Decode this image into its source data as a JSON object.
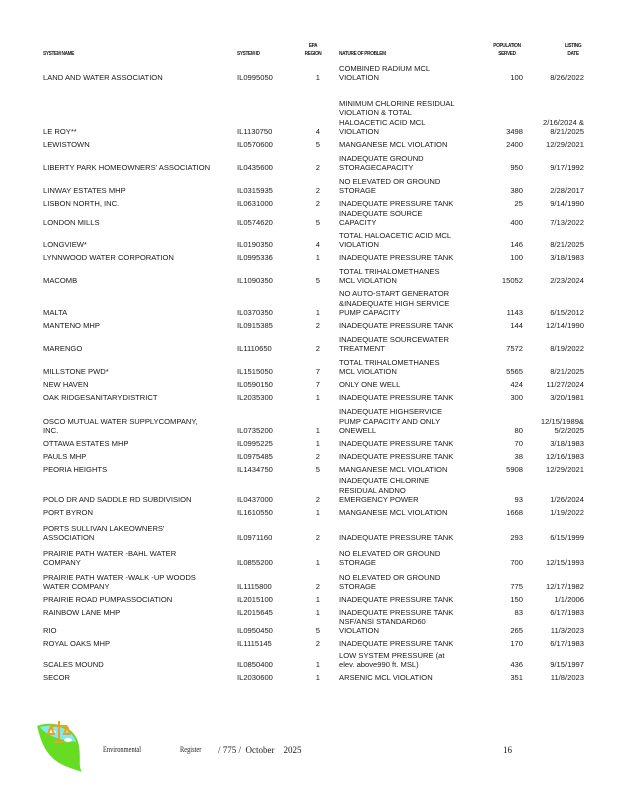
{
  "header": {
    "system_name": "SYSTEM      NAME",
    "system_id": "SYSTEM      ID",
    "epa_region": "EPA\nREGION",
    "nature": "NATURE      OF  PROBLEM",
    "population": "POPULATION\nSERVED",
    "listing_date": "LISTING\nDATE"
  },
  "rows": [
    {
      "name": "LAND AND  WATER  ASSOCIATION",
      "id": "IL0995050",
      "region": "1",
      "problem": "COMBINED  RADIUM MCL\nVIOLATION",
      "population": "100",
      "date": "8/26/2022"
    },
    {
      "name": "LE ROY**",
      "id": "IL1130750",
      "region": "4",
      "problem": "MINIMUM CHLORINE RESIDUAL\nVIOLATION  & TOTAL\nHALOACETIC  ACID MCL\nVIOLATION",
      "population": "3498",
      "date": "2/16/2024  &\n8/21/2025"
    },
    {
      "name": "LEWISTOWN",
      "id": "IL0570600",
      "region": "5",
      "problem": "MANGANESE  MCL VIOLATION",
      "population": "2400",
      "date": "12/29/2021"
    },
    {
      "name": "LIBERTY  PARK HOMEOWNERS'  ASSOCIATION",
      "id": "IL0435600",
      "region": "2",
      "problem": "INADEQUATE  GROUND\nSTORAGECAPACITY",
      "population": "950",
      "date": "9/17/1992"
    },
    {
      "name": "LINWAY ESTATES  MHP",
      "id": "IL0315935",
      "region": "2",
      "problem": "NO ELEVATED  OR GROUND\nSTORAGE",
      "population": "380",
      "date": "2/28/2017"
    },
    {
      "name": "LISBON  NORTH, INC.",
      "id": "IL0631000",
      "region": "2",
      "problem": "INADEQUATE  PRESSURE  TANK",
      "population": "25",
      "date": "9/14/1990"
    },
    {
      "name": "LONDON MILLS",
      "id": "IL0574620",
      "region": "5",
      "problem": "INADEQUATE  SOURCE\nCAPACITY",
      "population": "400",
      "date": "7/13/2022"
    },
    {
      "name": "LONGVIEW*",
      "id": "IL0190350",
      "region": "4",
      "problem": "TOTAL HALOACETIC  ACID MCL\nVIOLATION",
      "population": "146",
      "date": "8/21/2025"
    },
    {
      "name": "LYNNWOOD WATER  CORPORATION",
      "id": "IL0995336",
      "region": "1",
      "problem": "INADEQUATE  PRESSURE  TANK",
      "population": "100",
      "date": "3/18/1983"
    },
    {
      "name": "MACOMB",
      "id": "IL1090350",
      "region": "5",
      "problem": "TOTAL TRIHALOMETHANES\nMCL VIOLATION",
      "population": "15052",
      "date": "2/23/2024"
    },
    {
      "name": "MALTA",
      "id": "IL0370350",
      "region": "1",
      "problem": "NO AUTO-START GENERATOR\n&INADEQUATE   HIGH SERVICE\nPUMP CAPACITY",
      "population": "1143",
      "date": "6/15/2012"
    },
    {
      "name": "MANTENO MHP",
      "id": "IL0915385",
      "region": "2",
      "problem": "INADEQUATE  PRESSURE  TANK",
      "population": "144",
      "date": "12/14/1990"
    },
    {
      "name": "MARENGO",
      "id": "IL1110650",
      "region": "2",
      "problem": "INADEQUATE  SOURCEWATER\nTREATMENT",
      "population": "7572",
      "date": "8/19/2022"
    },
    {
      "name": "MILLSTONE  PWD*",
      "id": "IL1515050",
      "region": "7",
      "problem": "TOTAL TRIHALOMETHANES\nMCL VIOLATION",
      "population": "5565",
      "date": "8/21/2025"
    },
    {
      "name": "NEW HAVEN",
      "id": "IL0590150",
      "region": "7",
      "problem": "ONLY ONE WELL",
      "population": "424",
      "date": "11/27/2024"
    },
    {
      "name": "OAK RIDGESANITARYDISTRICT",
      "id": "IL2035300",
      "region": "1",
      "problem": "INADEQUATE  PRESSURE  TANK",
      "population": "300",
      "date": "3/20/1981"
    },
    {
      "name": "OSCO MUTUAL WATER  SUPPLYCOMPANY,\nINC.",
      "id": "IL0735200",
      "region": "1",
      "problem": "INADEQUATE  HIGHSERVICE\nPUMP CAPACITY  AND ONLY\nONEWELL",
      "population": "80",
      "date": "12/15/1989&\n5/2/2025"
    },
    {
      "name": "OTTAWA ESTATES  MHP",
      "id": "IL0995225",
      "region": "1",
      "problem": "INADEQUATE  PRESSURE  TANK",
      "population": "70",
      "date": "3/18/1983"
    },
    {
      "name": "PAULS MHP",
      "id": "IL0975485",
      "region": "2",
      "problem": "INADEQUATE  PRESSURE  TANK",
      "population": "38",
      "date": "12/16/1983"
    },
    {
      "name": "PEORIA  HEIGHTS",
      "id": "IL1434750",
      "region": "5",
      "problem": "MANGANESE  MCL VIOLATION",
      "population": "5908",
      "date": "12/29/2021"
    },
    {
      "name": "POLO DR AND SADDLE   RD SUBDIVISION",
      "id": "IL0437000",
      "region": "2",
      "problem": "INADEQUATE  CHLORINE\nRESIDUAL  ANDNO\nEMERGENCY  POWER",
      "population": "93",
      "date": "1/26/2024"
    },
    {
      "name": "PORT BYRON",
      "id": "IL1610550",
      "region": "1",
      "problem": "MANGANESE  MCL VIOLATION",
      "population": "1668",
      "date": "1/19/2022"
    },
    {
      "name": "PORTS SULLIVAN  LAKEOWNERS'\nASSOCIATION",
      "id": "IL0971160",
      "region": "2",
      "problem": "INADEQUATE  PRESSURE  TANK",
      "population": "293",
      "date": "6/15/1999"
    },
    {
      "name": "PRAIRIE  PATH WATER  -BAHL  WATER\nCOMPANY",
      "id": "IL0855200",
      "region": "1",
      "problem": "NO ELEVATED  OR GROUND\nSTORAGE",
      "population": "700",
      "date": "12/15/1993"
    },
    {
      "name": "PRAIRIE  PATH WATER  -WALK -UP WOODS\nWATER COMPANY",
      "id": "IL1115800",
      "region": "2",
      "problem": "NO ELEVATED  OR GROUND\nSTORAGE",
      "population": "775",
      "date": "12/17/1982"
    },
    {
      "name": "PRAIRIE  ROAD PUMPASSOCIATION",
      "id": "IL2015100",
      "region": "1",
      "problem": "INADEQUATE  PRESSURE  TANK",
      "population": "150",
      "date": "1/1/2006"
    },
    {
      "name": "RAINBOW  LANE MHP",
      "id": "IL2015645",
      "region": "1",
      "problem": "INADEQUATE  PRESSURE  TANK",
      "population": "83",
      "date": "6/17/1983"
    },
    {
      "name": "RIO",
      "id": "IL0950450",
      "region": "5",
      "problem": "NSF/ANSI STANDARD60\nVIOLATION",
      "population": "265",
      "date": "11/3/2023"
    },
    {
      "name": "ROYAL  OAKS  MHP",
      "id": "IL1115145",
      "region": "2",
      "problem": "INADEQUATE  PRESSURE  TANK",
      "population": "170",
      "date": "6/17/1983"
    },
    {
      "name": "SCALES  MOUND",
      "id": "IL0850400",
      "region": "1",
      "problem": "LOW SYSTEM  PRESSURE  (at\nelev. above990  ft. MSL)",
      "population": "436",
      "date": "9/15/1997"
    },
    {
      "name": "SECOR",
      "id": "IL2030600",
      "region": "1",
      "problem": "ARSENIC  MCL VIOLATION",
      "population": "351",
      "date": "11/8/2023"
    }
  ],
  "footer": {
    "publication": "Environmental",
    "register": "Register",
    "issue": "/ 775 /  October    2025",
    "page_number": "16",
    "logo_icon": "leaf-scales-logo"
  }
}
